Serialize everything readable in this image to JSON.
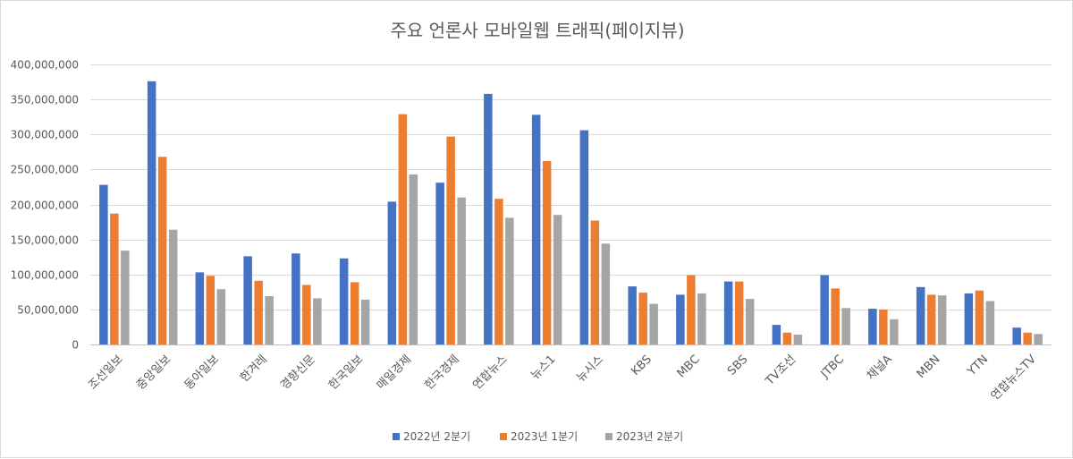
{
  "chart_data": {
    "type": "bar",
    "title": "주요 언론사 모바일웹 트래픽(페이지뷰)",
    "xlabel": "",
    "ylabel": "",
    "ylim": [
      0,
      400000000
    ],
    "yticks": [
      0,
      50000000,
      100000000,
      150000000,
      200000000,
      250000000,
      300000000,
      350000000,
      400000000
    ],
    "ytick_labels": [
      "0",
      "50,000,000",
      "100,000,000",
      "150,000,000",
      "200,000,000",
      "250,000,000",
      "300,000,000",
      "350,000,000",
      "400,000,000"
    ],
    "grid": true,
    "legend_position": "bottom",
    "categories": [
      "조선일보",
      "중앙일보",
      "동아일보",
      "한겨레",
      "경향신문",
      "한국일보",
      "매일경제",
      "한국경제",
      "연합뉴스",
      "뉴스1",
      "뉴시스",
      "KBS",
      "MBC",
      "SBS",
      "TV조선",
      "JTBC",
      "채널A",
      "MBN",
      "YTN",
      "연합뉴스TV"
    ],
    "series": [
      {
        "name": "2022년 2분기",
        "color": "#4472C4",
        "values": [
          228000000,
          376000000,
          103000000,
          126000000,
          130000000,
          123000000,
          204000000,
          231000000,
          358000000,
          328000000,
          306000000,
          83000000,
          71000000,
          90000000,
          28000000,
          99000000,
          51000000,
          82000000,
          73000000,
          24000000
        ]
      },
      {
        "name": "2023년 1분기",
        "color": "#ED7D31",
        "values": [
          187000000,
          268000000,
          98000000,
          91000000,
          85000000,
          89000000,
          329000000,
          297000000,
          208000000,
          262000000,
          177000000,
          74000000,
          99000000,
          90000000,
          17000000,
          80000000,
          50000000,
          71000000,
          77000000,
          17000000
        ]
      },
      {
        "name": "2023년 2분기",
        "color": "#A5A5A5",
        "values": [
          134000000,
          164000000,
          79000000,
          69000000,
          66000000,
          64000000,
          243000000,
          210000000,
          181000000,
          185000000,
          144000000,
          58000000,
          73000000,
          65000000,
          14000000,
          52000000,
          36000000,
          70000000,
          62000000,
          15000000
        ]
      }
    ]
  }
}
